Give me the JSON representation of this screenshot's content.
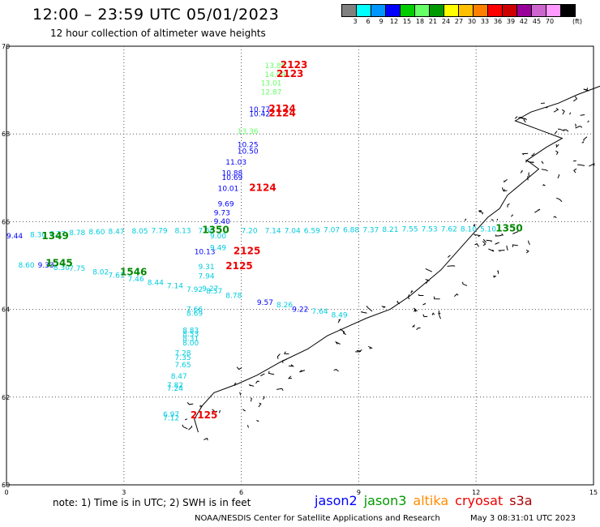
{
  "header": {
    "title": "12:00 – 23:59 UTC 05/01/2023",
    "subtitle": "12 hour collection of altimeter wave heights"
  },
  "legend": {
    "colors": [
      "#808080",
      "#00ffff",
      "#0096ff",
      "#0000ff",
      "#00cc00",
      "#66ff66",
      "#009900",
      "#ffff00",
      "#ffc000",
      "#ff8000",
      "#ff0000",
      "#cc0000",
      "#990099",
      "#cc66cc",
      "#ff99ff",
      "#000000"
    ],
    "labels": [
      "3",
      "6",
      "9",
      "12",
      "15",
      "18",
      "21",
      "24",
      "27",
      "30",
      "33",
      "36",
      "39",
      "42",
      "45",
      "70"
    ],
    "unit": "(ft)"
  },
  "map": {
    "lon_range": [
      0,
      15
    ],
    "lat_range": [
      60,
      70
    ],
    "x_ticks": [
      "0",
      "3",
      "6",
      "9",
      "12",
      "15"
    ],
    "y_ticks": [
      "60",
      "62",
      "64",
      "66",
      "68",
      "70"
    ],
    "coast_color": "#000000",
    "grid": "dotted"
  },
  "readings": [
    {
      "lon": 6.6,
      "lat": 69.5,
      "text": "13.88",
      "color": "#66ff66"
    },
    {
      "lon": 6.6,
      "lat": 69.3,
      "text": "14.09",
      "color": "#66ff66"
    },
    {
      "lon": 6.5,
      "lat": 69.1,
      "text": "13.01",
      "color": "#66ff66"
    },
    {
      "lon": 6.5,
      "lat": 68.9,
      "text": "12.87",
      "color": "#66ff66"
    },
    {
      "lon": 6.2,
      "lat": 68.5,
      "text": "10.77",
      "color": "#0000ff"
    },
    {
      "lon": 6.2,
      "lat": 68.4,
      "text": "10.42",
      "color": "#0000ff"
    },
    {
      "lon": 5.9,
      "lat": 68.0,
      "text": "13.36",
      "color": "#66ff66"
    },
    {
      "lon": 5.9,
      "lat": 67.7,
      "text": "10.25",
      "color": "#0000ff"
    },
    {
      "lon": 5.9,
      "lat": 67.55,
      "text": "10.50",
      "color": "#0000ff"
    },
    {
      "lon": 5.6,
      "lat": 67.3,
      "text": "11.03",
      "color": "#0000ff"
    },
    {
      "lon": 5.5,
      "lat": 67.05,
      "text": "10.88",
      "color": "#0000ff"
    },
    {
      "lon": 5.5,
      "lat": 66.95,
      "text": "10.69",
      "color": "#0000ff"
    },
    {
      "lon": 5.4,
      "lat": 66.7,
      "text": "10.01",
      "color": "#0000ff"
    },
    {
      "lon": 5.4,
      "lat": 66.35,
      "text": "9.69",
      "color": "#0000ff"
    },
    {
      "lon": 5.3,
      "lat": 66.15,
      "text": "9.73",
      "color": "#0000ff"
    },
    {
      "lon": 5.3,
      "lat": 65.95,
      "text": "9.40",
      "color": "#0000ff"
    },
    {
      "lon": 0.0,
      "lat": 65.62,
      "text": "9.44",
      "color": "#0000ff"
    },
    {
      "lon": 4.8,
      "lat": 65.26,
      "text": "10.13",
      "color": "#0000ff"
    },
    {
      "lon": 0.8,
      "lat": 64.95,
      "text": "9.33",
      "color": "#0000ff"
    },
    {
      "lon": 6.4,
      "lat": 64.1,
      "text": "9.57",
      "color": "#0000ff"
    },
    {
      "lon": 7.3,
      "lat": 63.95,
      "text": "9.22",
      "color": "#0000ff"
    },
    {
      "lon": 6.0,
      "lat": 65.74,
      "text": "7.20",
      "color": "#00ccdd"
    },
    {
      "lon": 6.6,
      "lat": 65.74,
      "text": "7.14",
      "color": "#00ccdd"
    },
    {
      "lon": 7.1,
      "lat": 65.74,
      "text": "7.04",
      "color": "#00ccdd"
    },
    {
      "lon": 7.6,
      "lat": 65.74,
      "text": "6.59",
      "color": "#00ccdd"
    },
    {
      "lon": 8.1,
      "lat": 65.76,
      "text": "7.07",
      "color": "#00ccdd"
    },
    {
      "lon": 8.6,
      "lat": 65.76,
      "text": "6.88",
      "color": "#00ccdd"
    },
    {
      "lon": 9.1,
      "lat": 65.76,
      "text": "7.37",
      "color": "#00ccdd"
    },
    {
      "lon": 9.6,
      "lat": 65.77,
      "text": "8.21",
      "color": "#00ccdd"
    },
    {
      "lon": 10.1,
      "lat": 65.78,
      "text": "7.55",
      "color": "#00ccdd"
    },
    {
      "lon": 10.6,
      "lat": 65.78,
      "text": "7.53",
      "color": "#00ccdd"
    },
    {
      "lon": 11.1,
      "lat": 65.78,
      "text": "7.62",
      "color": "#00ccdd"
    },
    {
      "lon": 11.6,
      "lat": 65.78,
      "text": "8.10",
      "color": "#00ccdd"
    },
    {
      "lon": 12.1,
      "lat": 65.78,
      "text": "5.10",
      "color": "#00ccdd"
    },
    {
      "lon": 0.6,
      "lat": 65.65,
      "text": "8.30",
      "color": "#00ccdd"
    },
    {
      "lon": 1.1,
      "lat": 65.67,
      "text": "8.37",
      "color": "#00ccdd"
    },
    {
      "lon": 1.6,
      "lat": 65.69,
      "text": "8.78",
      "color": "#00ccdd"
    },
    {
      "lon": 2.1,
      "lat": 65.71,
      "text": "8.60",
      "color": "#00ccdd"
    },
    {
      "lon": 2.6,
      "lat": 65.72,
      "text": "8.47",
      "color": "#00ccdd"
    },
    {
      "lon": 3.2,
      "lat": 65.73,
      "text": "8.05",
      "color": "#00ccdd"
    },
    {
      "lon": 3.7,
      "lat": 65.74,
      "text": "7.79",
      "color": "#00ccdd"
    },
    {
      "lon": 4.3,
      "lat": 65.74,
      "text": "8.13",
      "color": "#00ccdd"
    },
    {
      "lon": 4.9,
      "lat": 65.74,
      "text": "7.50",
      "color": "#00ccdd"
    },
    {
      "lon": 5.2,
      "lat": 65.62,
      "text": "9.00",
      "color": "#00ccdd"
    },
    {
      "lon": 5.2,
      "lat": 65.35,
      "text": "9.49",
      "color": "#00ccdd"
    },
    {
      "lon": 0.3,
      "lat": 64.95,
      "text": "8.60",
      "color": "#00ccdd"
    },
    {
      "lon": 1.2,
      "lat": 64.9,
      "text": "8.30",
      "color": "#00ccdd"
    },
    {
      "lon": 1.6,
      "lat": 64.88,
      "text": "7.75",
      "color": "#00ccdd"
    },
    {
      "lon": 2.2,
      "lat": 64.8,
      "text": "8.02",
      "color": "#00ccdd"
    },
    {
      "lon": 2.6,
      "lat": 64.72,
      "text": "7.61",
      "color": "#00ccdd"
    },
    {
      "lon": 3.1,
      "lat": 64.64,
      "text": "7.46",
      "color": "#00ccdd"
    },
    {
      "lon": 3.6,
      "lat": 64.56,
      "text": "8.44",
      "color": "#00ccdd"
    },
    {
      "lon": 4.1,
      "lat": 64.48,
      "text": "7.14",
      "color": "#00ccdd"
    },
    {
      "lon": 4.6,
      "lat": 64.4,
      "text": "7.92",
      "color": "#00ccdd"
    },
    {
      "lon": 5.1,
      "lat": 64.36,
      "text": "8.57",
      "color": "#00ccdd"
    },
    {
      "lon": 5.6,
      "lat": 64.26,
      "text": "8.78",
      "color": "#00ccdd"
    },
    {
      "lon": 4.9,
      "lat": 64.92,
      "text": "9.31",
      "color": "#00ccdd"
    },
    {
      "lon": 4.9,
      "lat": 64.7,
      "text": "7.94",
      "color": "#00ccdd"
    },
    {
      "lon": 5.0,
      "lat": 64.42,
      "text": "9.27",
      "color": "#00ccdd"
    },
    {
      "lon": 6.9,
      "lat": 64.05,
      "text": "8.26",
      "color": "#00ccdd"
    },
    {
      "lon": 7.8,
      "lat": 63.9,
      "text": "7.64",
      "color": "#00ccdd"
    },
    {
      "lon": 8.3,
      "lat": 63.82,
      "text": "8.49",
      "color": "#00ccdd"
    },
    {
      "lon": 4.6,
      "lat": 63.95,
      "text": "7.66",
      "color": "#00ccdd"
    },
    {
      "lon": 4.6,
      "lat": 63.85,
      "text": "8.69",
      "color": "#00ccdd"
    },
    {
      "lon": 4.5,
      "lat": 63.47,
      "text": "8.83",
      "color": "#00ccdd"
    },
    {
      "lon": 4.5,
      "lat": 63.38,
      "text": "8.53",
      "color": "#00ccdd"
    },
    {
      "lon": 4.5,
      "lat": 63.28,
      "text": "8.31",
      "color": "#00ccdd"
    },
    {
      "lon": 4.5,
      "lat": 63.18,
      "text": "8.00",
      "color": "#00ccdd"
    },
    {
      "lon": 4.3,
      "lat": 62.95,
      "text": "7.28",
      "color": "#00ccdd"
    },
    {
      "lon": 4.3,
      "lat": 62.85,
      "text": "7.35",
      "color": "#00ccdd"
    },
    {
      "lon": 4.3,
      "lat": 62.68,
      "text": "7.65",
      "color": "#00ccdd"
    },
    {
      "lon": 4.2,
      "lat": 62.42,
      "text": "8.47",
      "color": "#00ccdd"
    },
    {
      "lon": 4.1,
      "lat": 62.22,
      "text": "7.82",
      "color": "#00ccdd"
    },
    {
      "lon": 4.1,
      "lat": 62.14,
      "text": "7.24",
      "color": "#00ccdd"
    },
    {
      "lon": 4.0,
      "lat": 61.55,
      "text": "6.97",
      "color": "#00ccdd"
    },
    {
      "lon": 4.0,
      "lat": 61.47,
      "text": "7.12",
      "color": "#00ccdd"
    }
  ],
  "passes": [
    {
      "lon": 7.0,
      "lat": 69.5,
      "text": "2123",
      "color": "#ee0000"
    },
    {
      "lon": 6.9,
      "lat": 69.3,
      "text": "2123",
      "color": "#ee0000"
    },
    {
      "lon": 6.7,
      "lat": 68.5,
      "text": "2124",
      "color": "#ee0000"
    },
    {
      "lon": 6.7,
      "lat": 68.4,
      "text": "2124",
      "color": "#ee0000"
    },
    {
      "lon": 6.2,
      "lat": 66.7,
      "text": "2124",
      "color": "#ee0000"
    },
    {
      "lon": 5.8,
      "lat": 65.26,
      "text": "2125",
      "color": "#ee0000"
    },
    {
      "lon": 5.6,
      "lat": 64.92,
      "text": "2125",
      "color": "#ee0000"
    },
    {
      "lon": 4.7,
      "lat": 61.52,
      "text": "2125",
      "color": "#ee0000"
    },
    {
      "lon": 0.9,
      "lat": 65.6,
      "text": "1349",
      "color": "#008800"
    },
    {
      "lon": 1.0,
      "lat": 64.98,
      "text": "1545",
      "color": "#008800"
    },
    {
      "lon": 2.9,
      "lat": 64.78,
      "text": "1546",
      "color": "#008800"
    },
    {
      "lon": 5.0,
      "lat": 65.74,
      "text": "1350",
      "color": "#008800"
    },
    {
      "lon": 12.5,
      "lat": 65.78,
      "text": "1350",
      "color": "#008800"
    }
  ],
  "footer": {
    "note": "note:  1) Time is in UTC;  2) SWH is in feet",
    "satellites": [
      {
        "name": "jason2",
        "color": "#0000ff"
      },
      {
        "name": "jason3",
        "color": "#009900"
      },
      {
        "name": "altika",
        "color": "#ff8c00"
      },
      {
        "name": "cryosat",
        "color": "#ee0000"
      },
      {
        "name": "s3a",
        "color": "#aa0000"
      }
    ],
    "credit": "NOAA/NESDIS Center for Satellite Applications and Research",
    "timestamp": "May  3 08:31:01 UTC 2023"
  }
}
